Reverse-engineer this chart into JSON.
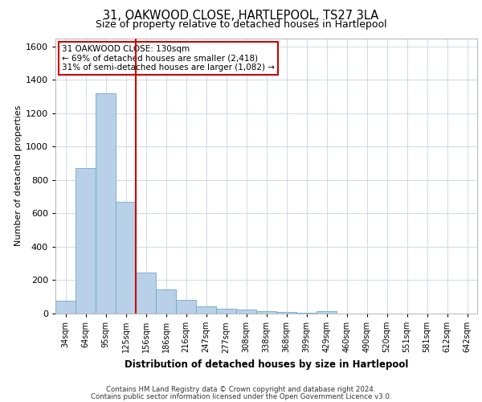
{
  "title": "31, OAKWOOD CLOSE, HARTLEPOOL, TS27 3LA",
  "subtitle": "Size of property relative to detached houses in Hartlepool",
  "xlabel": "Distribution of detached houses by size in Hartlepool",
  "ylabel": "Number of detached properties",
  "footer_line1": "Contains HM Land Registry data © Crown copyright and database right 2024.",
  "footer_line2": "Contains public sector information licensed under the Open Government Licence v3.0.",
  "annotation_title": "31 OAKWOOD CLOSE: 130sqm",
  "annotation_line2": "← 69% of detached houses are smaller (2,418)",
  "annotation_line3": "31% of semi-detached houses are larger (1,082) →",
  "bar_color": "#b8d0e8",
  "bar_edge_color": "#6fa8d0",
  "vline_color": "#cc0000",
  "annotation_box_color": "#cc0000",
  "background_color": "#ffffff",
  "grid_color": "#d0d8e8",
  "categories": [
    "34sqm",
    "64sqm",
    "95sqm",
    "125sqm",
    "156sqm",
    "186sqm",
    "216sqm",
    "247sqm",
    "277sqm",
    "308sqm",
    "338sqm",
    "368sqm",
    "399sqm",
    "429sqm",
    "460sqm",
    "490sqm",
    "520sqm",
    "551sqm",
    "581sqm",
    "612sqm",
    "642sqm"
  ],
  "values": [
    75,
    870,
    1320,
    670,
    245,
    145,
    80,
    45,
    30,
    25,
    15,
    8,
    5,
    15,
    0,
    0,
    0,
    0,
    0,
    0,
    0
  ],
  "ylim": [
    0,
    1650
  ],
  "yticks": [
    0,
    200,
    400,
    600,
    800,
    1000,
    1200,
    1400,
    1600
  ],
  "vline_position": 3.5
}
